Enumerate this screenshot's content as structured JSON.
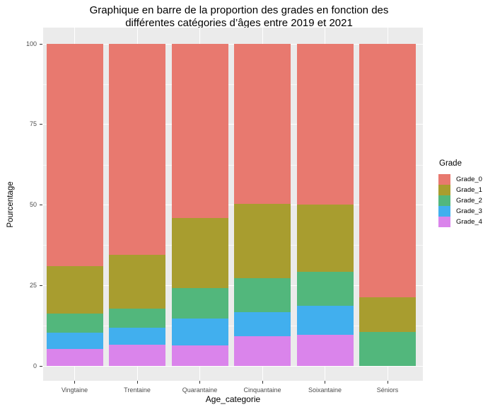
{
  "chart_data": {
    "type": "bar",
    "stacked": true,
    "percent": true,
    "title": "Graphique en barre de la proportion des grades en fonction des différentes catégories d’âges entre 2019 et 2021",
    "title_lines": [
      "Graphique en barre de la proportion des grades en fonction des",
      "différentes catégories d’âges entre 2019 et 2021"
    ],
    "xlabel": "Age_categorie",
    "ylabel": "Pourcentage",
    "ylim": [
      0,
      100
    ],
    "yticks": [
      0,
      25,
      50,
      75,
      100
    ],
    "yticks_minor": [
      12.5,
      37.5,
      62.5,
      87.5
    ],
    "grid": true,
    "legend_title": "Grade",
    "legend_position": "right",
    "categories": [
      "Vingtaine",
      "Trentaine",
      "Quarantaine",
      "Cinquantaine",
      "Soixantaine",
      "Séniors"
    ],
    "stack_order_bottom_to_top": [
      "Grade_4",
      "Grade_3",
      "Grade_2",
      "Grade_1",
      "Grade_0"
    ],
    "series": [
      {
        "name": "Grade_0",
        "color": "#E8796F",
        "values": [
          69.0,
          65.5,
          54.1,
          49.7,
          49.9,
          78.7
        ]
      },
      {
        "name": "Grade_1",
        "color": "#A89D2F",
        "values": [
          14.7,
          16.7,
          21.7,
          23.0,
          20.9,
          10.8
        ]
      },
      {
        "name": "Grade_2",
        "color": "#52B77C",
        "values": [
          6.0,
          5.9,
          9.5,
          10.6,
          10.5,
          10.5
        ]
      },
      {
        "name": "Grade_3",
        "color": "#41AFEE",
        "values": [
          5.0,
          5.3,
          8.3,
          7.5,
          9.0,
          0.0
        ]
      },
      {
        "name": "Grade_4",
        "color": "#DA84EB",
        "values": [
          5.3,
          6.6,
          6.4,
          9.2,
          9.7,
          0.0
        ]
      }
    ],
    "colors": {
      "panel_background": "#EBEBEB",
      "gridline": "#FFFFFF"
    }
  }
}
